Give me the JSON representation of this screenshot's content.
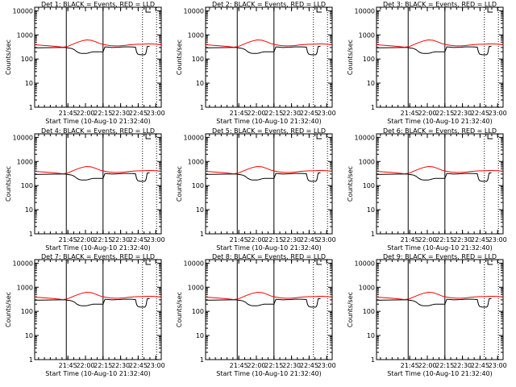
{
  "chart_data": {
    "type": "line",
    "panel_titles": [
      "Det 1: BLACK = Events, RED = LLD",
      "Det 2: BLACK = Events, RED = LLD",
      "Det 3: BLACK = Events, RED = LLD",
      "Det 4: BLACK = Events, RED = LLD",
      "Det 5: BLACK = Events, RED = LLD",
      "Det 6: BLACK = Events, RED = LLD",
      "Det 7: BLACK = Events, RED = LLD",
      "Det 8: BLACK = Events, RED = LLD",
      "Det 9: BLACK = Events, RED = LLD"
    ],
    "xlabel": "Start Time (10-Aug-10 21:32:40)",
    "ylabel": "Counts/sec",
    "yscale": "log",
    "ylim": [
      1,
      14000
    ],
    "xlim_minutes": [
      -16,
      92
    ],
    "x_ticks": [
      "21:45",
      "22:00",
      "22:15",
      "22:30",
      "22:45",
      "23:00"
    ],
    "x_tick_minutes": [
      12.33,
      27.33,
      42.33,
      57.33,
      72.33,
      87.33
    ],
    "y_ticks": [
      "1",
      "10",
      "100",
      "1000",
      "10000"
    ],
    "y_tick_values": [
      1,
      10,
      100,
      1000,
      10000
    ],
    "solid_vlines_minutes": [
      11,
      42.33
    ],
    "dotted_vlines_minutes": [
      76,
      88
    ],
    "colors": {
      "events": "#000000",
      "lld": "#ff0000",
      "axes": "#000000"
    },
    "series": [
      {
        "name": "BLACK = Events",
        "color": "#000000",
        "x": [
          -16,
          5,
          10,
          11,
          12,
          14,
          16,
          18,
          20,
          22,
          24,
          26,
          28,
          30,
          32,
          34,
          36,
          38,
          40,
          42.33,
          44,
          50,
          56,
          60,
          62,
          64,
          66,
          70,
          71,
          72,
          74,
          78,
          78.5,
          79,
          80,
          82
        ],
        "y": [
          290,
          300,
          300,
          300,
          290,
          280,
          270,
          240,
          200,
          180,
          170,
          170,
          170,
          180,
          190,
          200,
          200,
          200,
          200,
          200,
          320,
          300,
          310,
          320,
          320,
          320,
          320,
          310,
          190,
          160,
          150,
          150,
          160,
          180,
          330,
          340
        ]
      },
      {
        "name": "RED = LLD",
        "color": "#ff0000",
        "x": [
          -16,
          0,
          8,
          12,
          16,
          20,
          24,
          28,
          32,
          36,
          40,
          44,
          48,
          52,
          56,
          60,
          64,
          68,
          72,
          76,
          80,
          84,
          88,
          92
        ],
        "y": [
          390,
          340,
          310,
          330,
          400,
          480,
          560,
          620,
          600,
          520,
          430,
          390,
          360,
          350,
          350,
          360,
          380,
          400,
          410,
          410,
          420,
          420,
          410,
          390
        ]
      }
    ]
  }
}
